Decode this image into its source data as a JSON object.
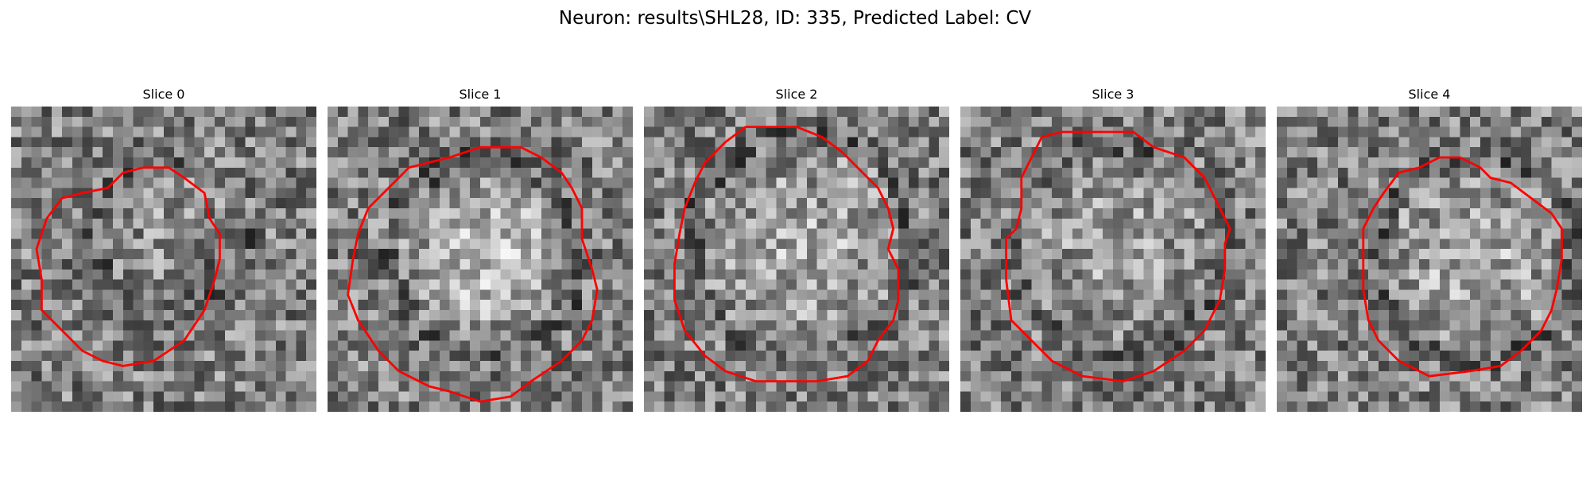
{
  "figure": {
    "title": "Neuron: results\\SHL28, ID: 335, Predicted Label: CV",
    "outline_color": "#ff0000",
    "colormap": "gray"
  },
  "panels": [
    {
      "label": "Slice 0",
      "cell": {
        "cx": 15.5,
        "cy": 12.5,
        "r": 6.5,
        "brightness": 0.08,
        "dark_lower_right": true
      },
      "contour": [
        [
          9.5,
          8
        ],
        [
          11,
          6.5
        ],
        [
          13,
          6
        ],
        [
          15.5,
          6
        ],
        [
          17,
          7
        ],
        [
          19,
          8.5
        ],
        [
          19.5,
          11
        ],
        [
          20.5,
          12.5
        ],
        [
          20.5,
          15
        ],
        [
          20,
          17
        ],
        [
          19,
          20
        ],
        [
          17,
          23
        ],
        [
          14,
          25
        ],
        [
          11,
          25.5
        ],
        [
          9,
          25
        ],
        [
          7,
          24
        ],
        [
          5,
          22
        ],
        [
          3,
          20
        ],
        [
          3,
          17
        ],
        [
          2.5,
          14
        ],
        [
          3.5,
          11
        ],
        [
          5,
          9
        ],
        [
          7,
          8.5
        ]
      ]
    },
    {
      "label": "Slice 1",
      "cell": {
        "cx": 15.5,
        "cy": 14.5,
        "r": 8.5,
        "brightness": 0.28,
        "dark_lower_right": false
      },
      "contour": [
        [
          12,
          5
        ],
        [
          15,
          4
        ],
        [
          19,
          4
        ],
        [
          21,
          5
        ],
        [
          23,
          6.5
        ],
        [
          24,
          8
        ],
        [
          25,
          10
        ],
        [
          25,
          13
        ],
        [
          26,
          16
        ],
        [
          26.5,
          18
        ],
        [
          26,
          21
        ],
        [
          25,
          23
        ],
        [
          23,
          25
        ],
        [
          20,
          27
        ],
        [
          18,
          28.5
        ],
        [
          15,
          29
        ],
        [
          12,
          28
        ],
        [
          10,
          27.5
        ],
        [
          7,
          26
        ],
        [
          5,
          24
        ],
        [
          3,
          21
        ],
        [
          2,
          18.5
        ],
        [
          2.5,
          15
        ],
        [
          3,
          12.5
        ],
        [
          4,
          10
        ],
        [
          6,
          8
        ],
        [
          8,
          6
        ]
      ]
    },
    {
      "label": "Slice 2",
      "cell": {
        "cx": 15.5,
        "cy": 13.5,
        "r": 10,
        "brightness": 0.2,
        "dark_lower_right": false
      },
      "contour": [
        [
          10,
          2
        ],
        [
          15,
          2
        ],
        [
          17.5,
          3
        ],
        [
          19.5,
          4.5
        ],
        [
          21.5,
          6.5
        ],
        [
          23,
          8
        ],
        [
          24,
          10
        ],
        [
          24.5,
          12
        ],
        [
          24,
          14
        ],
        [
          25,
          16
        ],
        [
          25,
          19
        ],
        [
          24.5,
          21
        ],
        [
          23,
          23
        ],
        [
          22,
          25
        ],
        [
          20,
          26.5
        ],
        [
          17,
          27
        ],
        [
          14,
          27
        ],
        [
          11,
          27
        ],
        [
          8,
          26
        ],
        [
          6,
          24.5
        ],
        [
          4,
          22
        ],
        [
          3,
          19
        ],
        [
          3,
          15.5
        ],
        [
          3.5,
          12.5
        ],
        [
          4,
          10
        ],
        [
          5,
          7.5
        ],
        [
          6,
          5.5
        ],
        [
          8,
          3.5
        ]
      ]
    },
    {
      "label": "Slice 3",
      "cell": {
        "cx": 15.5,
        "cy": 14,
        "r": 9.5,
        "brightness": 0.14,
        "dark_lower_right": false
      },
      "contour": [
        [
          8,
          3
        ],
        [
          10,
          2.5
        ],
        [
          14,
          2.5
        ],
        [
          17,
          2.5
        ],
        [
          19,
          4
        ],
        [
          22,
          5
        ],
        [
          24,
          7
        ],
        [
          25,
          9
        ],
        [
          26.5,
          12
        ],
        [
          26,
          13.5
        ],
        [
          26,
          16
        ],
        [
          25.5,
          19
        ],
        [
          24,
          22
        ],
        [
          22,
          24
        ],
        [
          19,
          26
        ],
        [
          16,
          27
        ],
        [
          12,
          26.5
        ],
        [
          9,
          25
        ],
        [
          7,
          23
        ],
        [
          5,
          21
        ],
        [
          4.5,
          17
        ],
        [
          4.5,
          13
        ],
        [
          5.5,
          12
        ],
        [
          6,
          10
        ],
        [
          6,
          7
        ],
        [
          7,
          5
        ]
      ]
    },
    {
      "label": "Slice 4",
      "cell": {
        "cx": 19.5,
        "cy": 15,
        "r": 9,
        "brightness": 0.22,
        "dark_lower_right": false
      },
      "contour": [
        [
          14,
          6
        ],
        [
          16,
          5
        ],
        [
          18,
          5
        ],
        [
          20,
          6
        ],
        [
          21,
          7
        ],
        [
          23,
          7.5
        ],
        [
          25,
          9
        ],
        [
          27,
          10.5
        ],
        [
          28,
          12
        ],
        [
          28,
          15
        ],
        [
          27.5,
          18
        ],
        [
          27,
          20
        ],
        [
          26,
          22
        ],
        [
          24,
          24
        ],
        [
          22,
          25.5
        ],
        [
          19,
          26
        ],
        [
          15,
          26.5
        ],
        [
          12,
          25
        ],
        [
          10,
          23
        ],
        [
          9,
          21
        ],
        [
          8.5,
          18
        ],
        [
          8.5,
          15
        ],
        [
          8.5,
          12
        ],
        [
          9.5,
          10
        ],
        [
          10.5,
          8.5
        ],
        [
          12,
          6.5
        ]
      ]
    }
  ]
}
